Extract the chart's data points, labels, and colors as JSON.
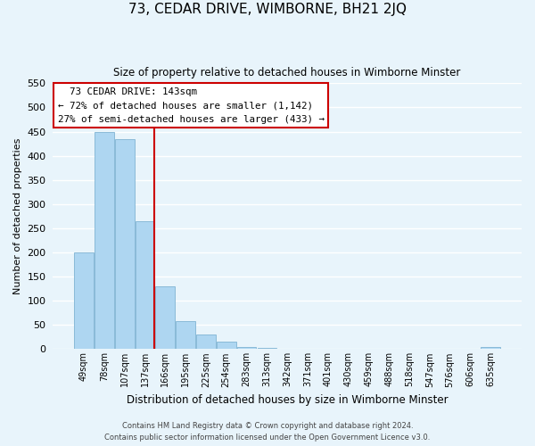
{
  "title": "73, CEDAR DRIVE, WIMBORNE, BH21 2JQ",
  "subtitle": "Size of property relative to detached houses in Wimborne Minster",
  "xlabel": "Distribution of detached houses by size in Wimborne Minster",
  "ylabel": "Number of detached properties",
  "bar_labels": [
    "49sqm",
    "78sqm",
    "107sqm",
    "137sqm",
    "166sqm",
    "195sqm",
    "225sqm",
    "254sqm",
    "283sqm",
    "313sqm",
    "342sqm",
    "371sqm",
    "401sqm",
    "430sqm",
    "459sqm",
    "488sqm",
    "518sqm",
    "547sqm",
    "576sqm",
    "606sqm",
    "635sqm"
  ],
  "bar_values": [
    200,
    450,
    435,
    265,
    130,
    58,
    30,
    15,
    5,
    2,
    1,
    0,
    0,
    0,
    0,
    0,
    0,
    0,
    0,
    0,
    4
  ],
  "bar_color": "#aed6f1",
  "bar_edge_color": "#7fb3d3",
  "vline_color": "#cc0000",
  "ylim": [
    0,
    550
  ],
  "yticks": [
    0,
    50,
    100,
    150,
    200,
    250,
    300,
    350,
    400,
    450,
    500,
    550
  ],
  "annotation_title": "73 CEDAR DRIVE: 143sqm",
  "annotation_line1": "← 72% of detached houses are smaller (1,142)",
  "annotation_line2": "27% of semi-detached houses are larger (433) →",
  "annotation_box_color": "#ffffff",
  "annotation_box_edge": "#cc0000",
  "footer_line1": "Contains HM Land Registry data © Crown copyright and database right 2024.",
  "footer_line2": "Contains public sector information licensed under the Open Government Licence v3.0.",
  "background_color": "#e8f4fb",
  "grid_color": "#ffffff"
}
